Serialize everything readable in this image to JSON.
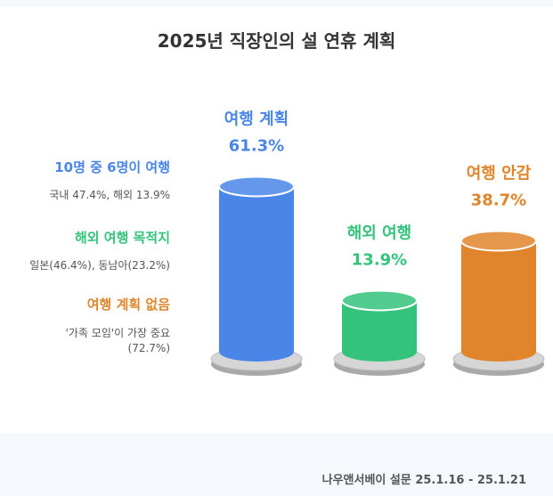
{
  "title": "2025년 직장인의 설 연휴 계획",
  "notes": [
    {
      "heading": "10명 중 6명이 여행",
      "text": "국내 47.4%, 해외 13.9%",
      "color": "#4a86e8"
    },
    {
      "heading": "해외 여행 목적지",
      "text": "일본(46.4%), 동남아(23.2%)",
      "color": "#34c37a"
    },
    {
      "heading": "여행 계획 없음",
      "text": "'가족 모임'이 가장 중요",
      "text2": "(72.7%)",
      "color": "#e0852c"
    }
  ],
  "source": "나우앤서베이 설문  25.1.16 - 25.1.21",
  "chart_data": {
    "type": "bar",
    "title": "2025년 직장인의 설 연휴 계획",
    "categories": [
      "여행 계획",
      "해외 여행",
      "여행 안감"
    ],
    "values": [
      61.3,
      13.9,
      38.7
    ],
    "value_labels": [
      "61.3%",
      "13.9%",
      "38.7%"
    ],
    "colors": [
      "#4a86e8",
      "#34c37a",
      "#e0852c"
    ],
    "ylim": [
      0,
      100
    ]
  }
}
